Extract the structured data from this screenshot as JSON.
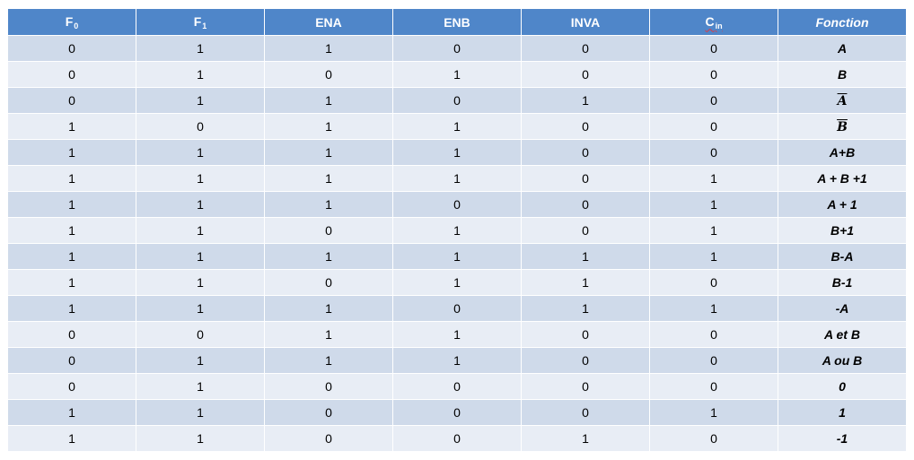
{
  "headers": [
    {
      "main": "F",
      "sub": "0"
    },
    {
      "main": "F",
      "sub": "1"
    },
    {
      "main": "ENA",
      "sub": ""
    },
    {
      "main": "ENB",
      "sub": ""
    },
    {
      "main": "INVA",
      "sub": ""
    },
    {
      "main": "C",
      "sub": "in"
    },
    {
      "main": "Fonction",
      "sub": ""
    }
  ],
  "rows": [
    [
      "0",
      "1",
      "1",
      "0",
      "0",
      "0",
      "A"
    ],
    [
      "0",
      "1",
      "0",
      "1",
      "0",
      "0",
      "B"
    ],
    [
      "0",
      "1",
      "1",
      "0",
      "1",
      "0",
      "A"
    ],
    [
      "1",
      "0",
      "1",
      "1",
      "0",
      "0",
      "B"
    ],
    [
      "1",
      "1",
      "1",
      "1",
      "0",
      "0",
      "A+B"
    ],
    [
      "1",
      "1",
      "1",
      "1",
      "0",
      "1",
      "A + B +1"
    ],
    [
      "1",
      "1",
      "1",
      "0",
      "0",
      "1",
      "A + 1"
    ],
    [
      "1",
      "1",
      "0",
      "1",
      "0",
      "1",
      "B+1"
    ],
    [
      "1",
      "1",
      "1",
      "1",
      "1",
      "1",
      "B-A"
    ],
    [
      "1",
      "1",
      "0",
      "1",
      "1",
      "0",
      "B-1"
    ],
    [
      "1",
      "1",
      "1",
      "0",
      "1",
      "1",
      "-A"
    ],
    [
      "0",
      "0",
      "1",
      "1",
      "0",
      "0",
      "A et B"
    ],
    [
      "0",
      "1",
      "1",
      "1",
      "0",
      "0",
      "A ou B"
    ],
    [
      "0",
      "1",
      "0",
      "0",
      "0",
      "0",
      "0"
    ],
    [
      "1",
      "1",
      "0",
      "0",
      "0",
      "1",
      "1"
    ],
    [
      "1",
      "1",
      "0",
      "0",
      "1",
      "0",
      "-1"
    ]
  ],
  "overlined_function_rows": [
    2,
    3
  ],
  "colors": {
    "header_bg": "#4f86c9",
    "row_odd_bg": "#cfdaea",
    "row_even_bg": "#e8edf5",
    "header_text": "#ffffff",
    "spellcheck_underline": "#e0393e"
  }
}
